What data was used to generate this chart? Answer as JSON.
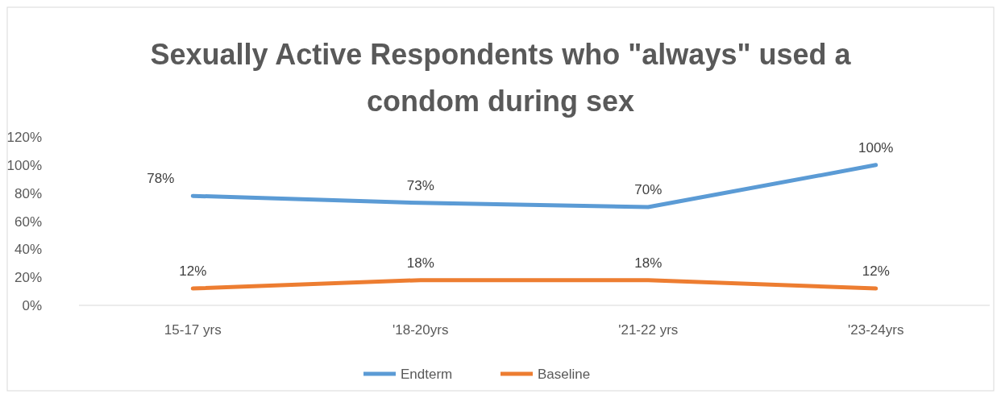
{
  "chart_data": {
    "type": "line",
    "title": "Sexually Active Respondents who \"always\" used a condom during sex",
    "categories": [
      "15-17 yrs",
      "'18-20yrs",
      "'21-22 yrs",
      "'23-24yrs"
    ],
    "series": [
      {
        "name": "Endterm",
        "color": "#5b9bd5",
        "values": [
          78,
          73,
          70,
          100
        ],
        "value_labels": [
          "78%",
          "73%",
          "70%",
          "100%"
        ]
      },
      {
        "name": "Baseline",
        "color": "#ed7d31",
        "values": [
          12,
          18,
          18,
          12
        ],
        "value_labels": [
          "12%",
          "18%",
          "18%",
          "12%"
        ]
      }
    ],
    "ylim": [
      0,
      120
    ],
    "yticks": [
      {
        "value": 0,
        "label": "0%"
      },
      {
        "value": 20,
        "label": "20%"
      },
      {
        "value": 40,
        "label": "40%"
      },
      {
        "value": 60,
        "label": "60%"
      },
      {
        "value": 80,
        "label": "80%"
      },
      {
        "value": 100,
        "label": "100%"
      },
      {
        "value": 120,
        "label": "120%"
      }
    ],
    "legend": "bottom",
    "grid": false,
    "marker": "none",
    "line_style": "solid"
  }
}
